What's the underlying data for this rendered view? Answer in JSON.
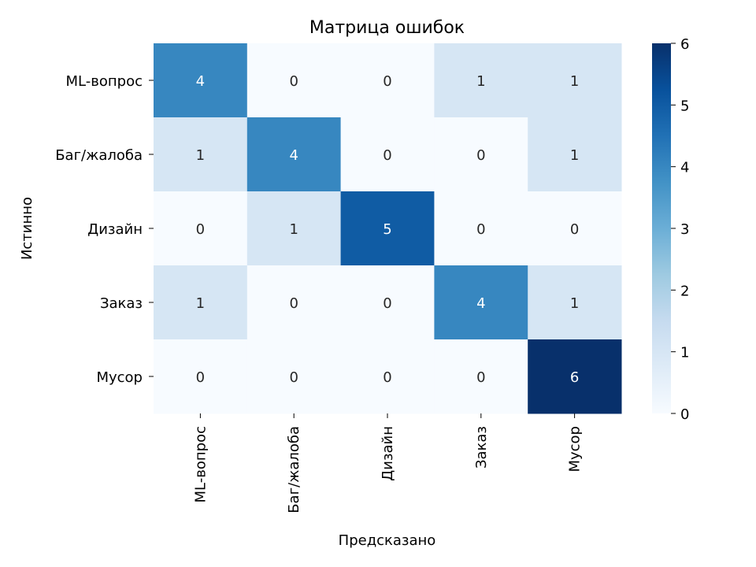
{
  "chart_data": {
    "type": "heatmap",
    "title": "Матрица ошибок",
    "xlabel": "Предсказано",
    "ylabel": "Истинно",
    "x_categories": [
      "ML-вопрос",
      "Баг/жалоба",
      "Дизайн",
      "Заказ",
      "Мусор"
    ],
    "y_categories": [
      "ML-вопрос",
      "Баг/жалоба",
      "Дизайн",
      "Заказ",
      "Мусор"
    ],
    "values": [
      [
        4,
        0,
        0,
        1,
        1
      ],
      [
        1,
        4,
        0,
        0,
        1
      ],
      [
        0,
        1,
        5,
        0,
        0
      ],
      [
        1,
        0,
        0,
        4,
        1
      ],
      [
        0,
        0,
        0,
        0,
        6
      ]
    ],
    "colorbar": {
      "min": 0,
      "max": 6,
      "ticks": [
        "0",
        "1",
        "2",
        "3",
        "4",
        "5",
        "6"
      ]
    },
    "colormap": "Blues",
    "cell_annotations": true,
    "colors": {
      "low": "#f7fbff",
      "high": "#08306b",
      "text_dark": "#262626",
      "text_light": "#ffffff"
    }
  }
}
